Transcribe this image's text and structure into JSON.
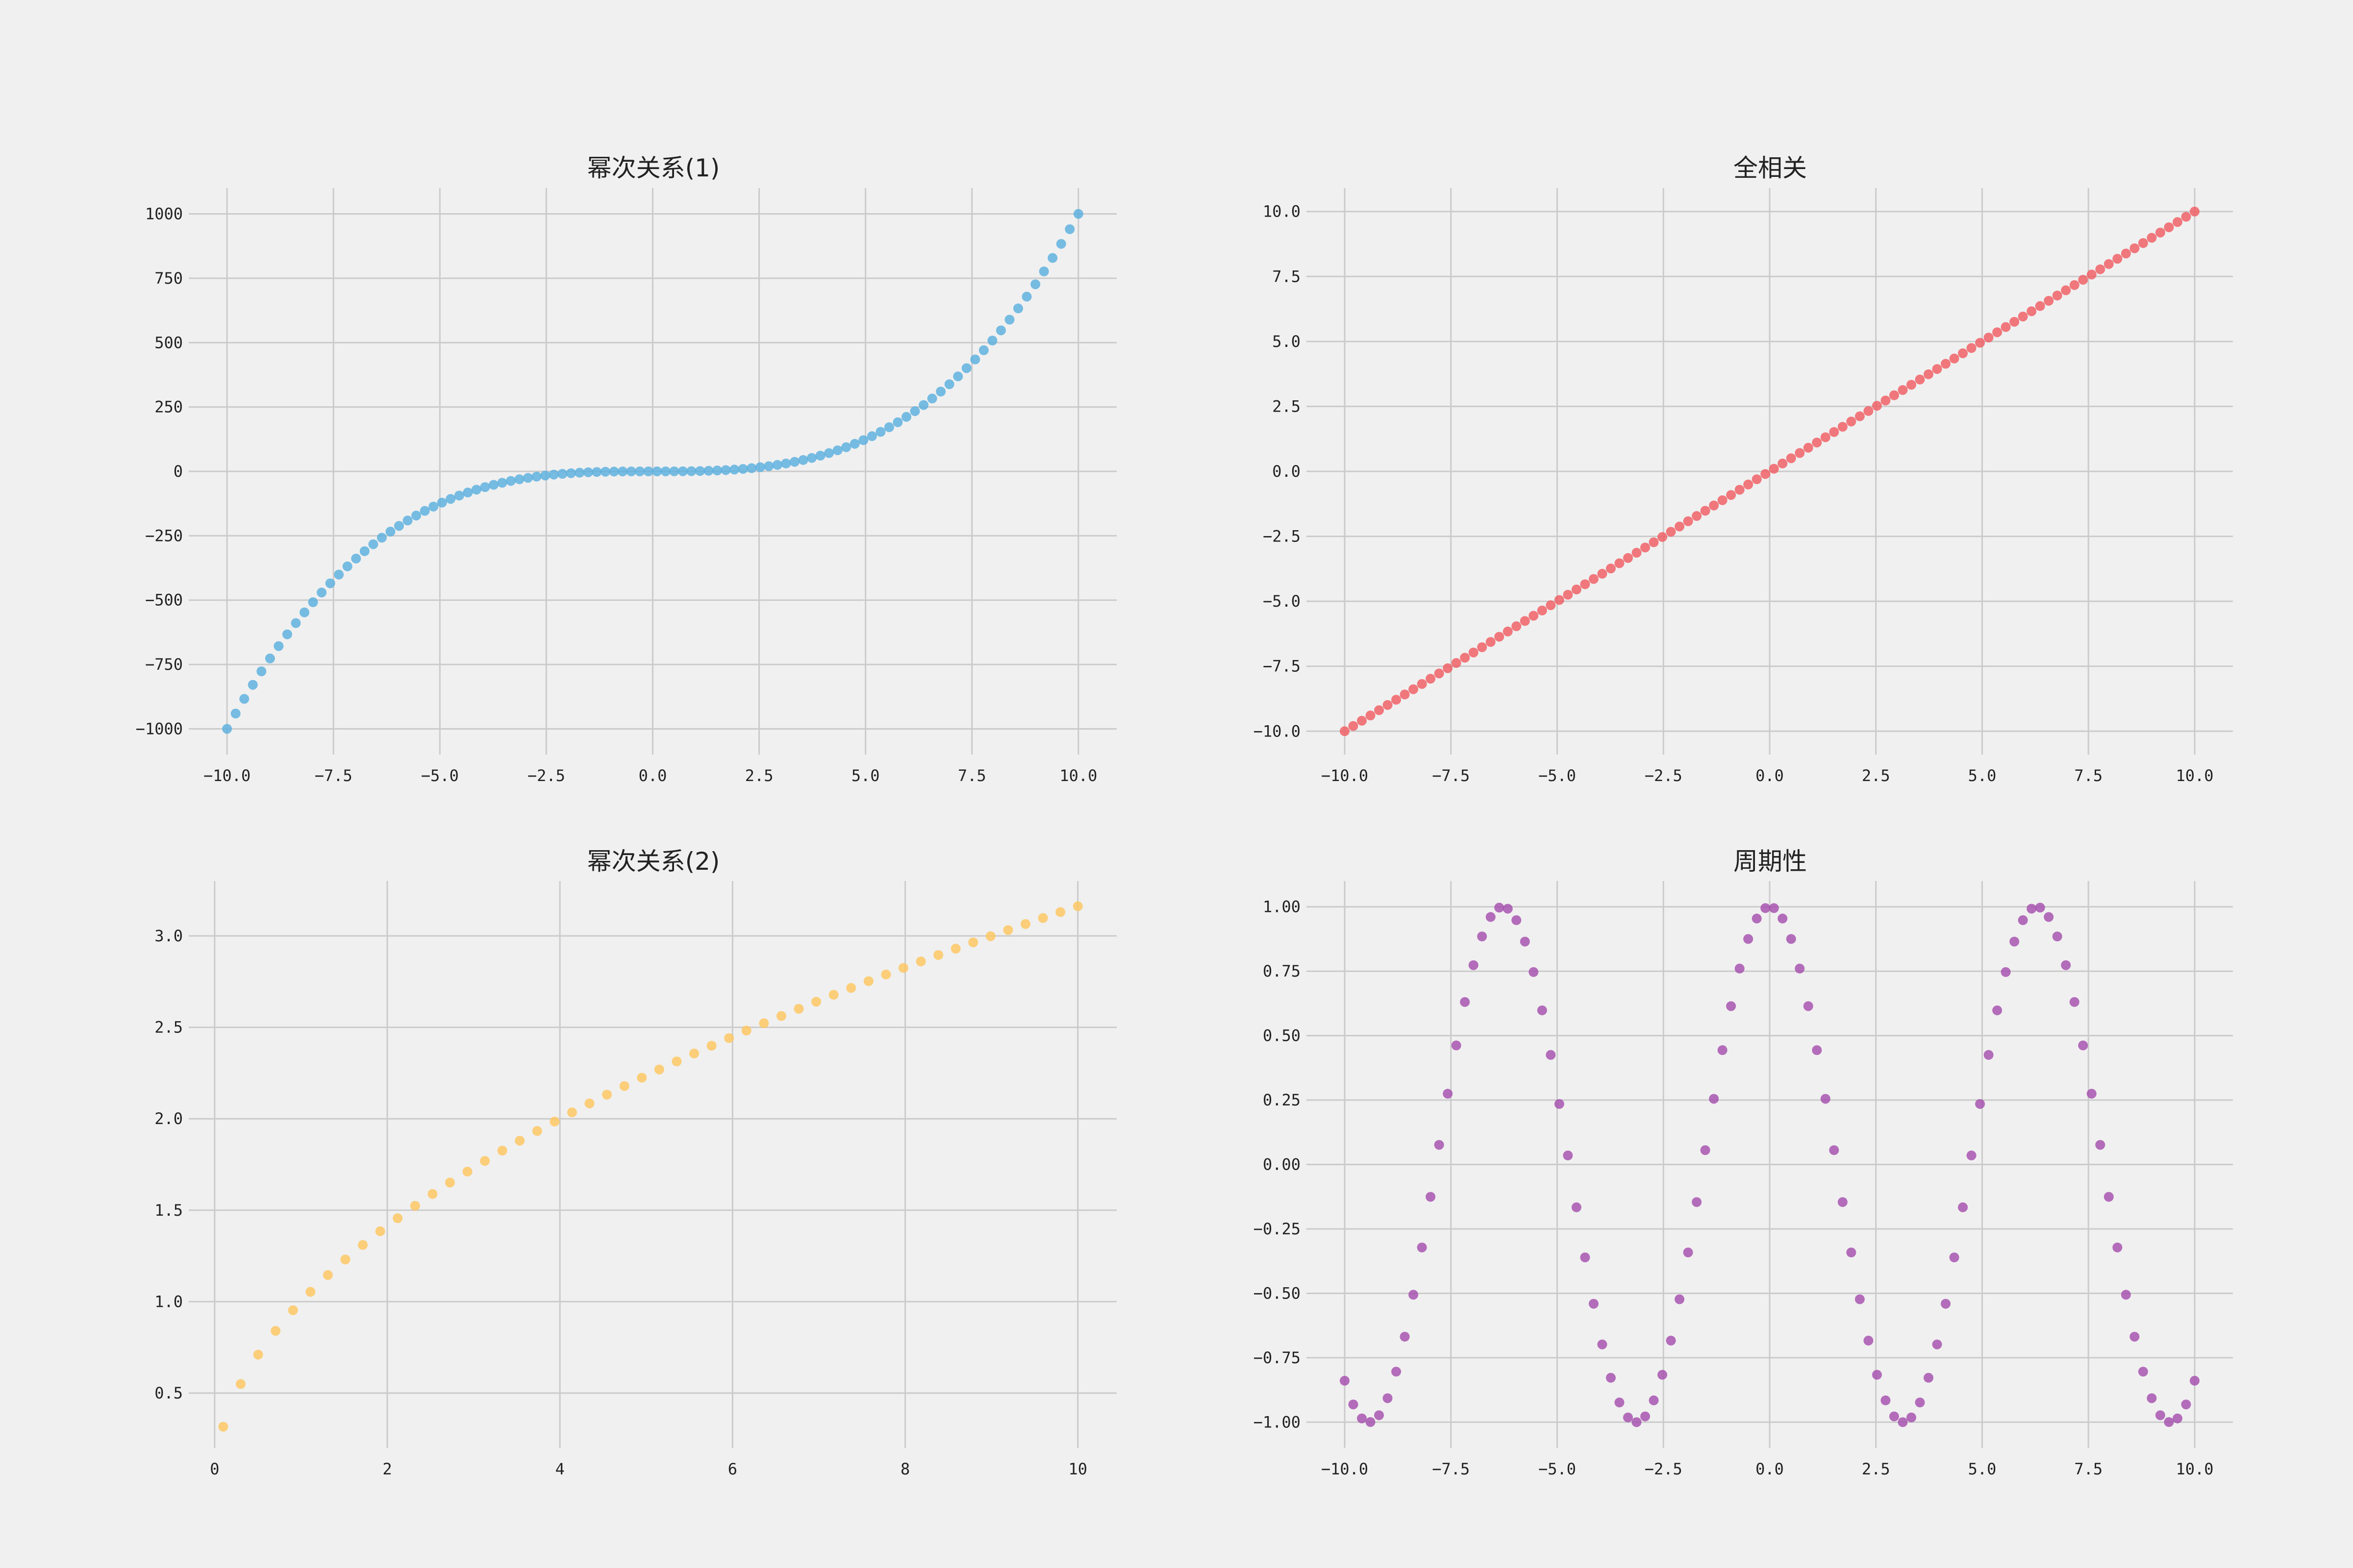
{
  "chart_data": [
    {
      "type": "scatter",
      "title": "幂次关系(1)",
      "xlabel": "",
      "ylabel": "",
      "function": "y = x^3",
      "x_range": [
        -10,
        10
      ],
      "n_points": 100,
      "xlim": [
        -10.9,
        10.9
      ],
      "ylim": [
        -1100,
        1100
      ],
      "xticks": [
        -10,
        -7.5,
        -5,
        -2.5,
        0,
        2.5,
        5,
        7.5,
        10
      ],
      "xtick_labels": [
        "−10.0",
        "−7.5",
        "−5.0",
        "−2.5",
        "0.0",
        "2.5",
        "5.0",
        "7.5",
        "10.0"
      ],
      "yticks": [
        1000,
        750,
        500,
        250,
        0,
        -250,
        -500,
        -750,
        -1000
      ],
      "ytick_labels": [
        "1000",
        "750",
        "500",
        "250",
        "0",
        "−250",
        "−500",
        "−750",
        "−1000"
      ],
      "grid": true,
      "color": "#56aede"
    },
    {
      "type": "scatter",
      "title": "全相关",
      "xlabel": "",
      "ylabel": "",
      "function": "y = x",
      "x_range": [
        -10,
        10
      ],
      "n_points": 100,
      "xlim": [
        -10.9,
        10.9
      ],
      "ylim": [
        -10.9,
        10.9
      ],
      "xticks": [
        -10,
        -7.5,
        -5,
        -2.5,
        0,
        2.5,
        5,
        7.5,
        10
      ],
      "xtick_labels": [
        "−10.0",
        "−7.5",
        "−5.0",
        "−2.5",
        "0.0",
        "2.5",
        "5.0",
        "7.5",
        "10.0"
      ],
      "yticks": [
        10,
        7.5,
        5,
        2.5,
        0,
        -2.5,
        -5,
        -7.5,
        -10
      ],
      "ytick_labels": [
        "10.0",
        "7.5",
        "5.0",
        "2.5",
        "0.0",
        "−2.5",
        "−5.0",
        "−7.5",
        "−10.0"
      ],
      "grid": true,
      "color": "#f05a5f"
    },
    {
      "type": "scatter",
      "title": "幂次关系(2)",
      "xlabel": "",
      "ylabel": "",
      "function": "y = sqrt(x)",
      "x_range": [
        0.1,
        10
      ],
      "n_points": 50,
      "xlim": [
        -0.3,
        10.45
      ],
      "ylim": [
        0.2,
        3.3
      ],
      "xticks": [
        0,
        2,
        4,
        6,
        8,
        10
      ],
      "xtick_labels": [
        "0",
        "2",
        "4",
        "6",
        "8",
        "10"
      ],
      "yticks": [
        3.0,
        2.5,
        2.0,
        1.5,
        1.0,
        0.5
      ],
      "ytick_labels": [
        "3.0",
        "2.5",
        "2.0",
        "1.5",
        "1.0",
        "0.5"
      ],
      "grid": true,
      "color": "#ffc65c"
    },
    {
      "type": "scatter",
      "title": "周期性",
      "xlabel": "",
      "ylabel": "",
      "function": "y = cos(x)",
      "x_range": [
        -10,
        10
      ],
      "n_points": 100,
      "xlim": [
        -10.9,
        10.9
      ],
      "ylim": [
        -1.1,
        1.1
      ],
      "xticks": [
        -10,
        -7.5,
        -5,
        -2.5,
        0,
        2.5,
        5,
        7.5,
        10
      ],
      "xtick_labels": [
        "−10.0",
        "−7.5",
        "−5.0",
        "−2.5",
        "0.0",
        "2.5",
        "5.0",
        "7.5",
        "10.0"
      ],
      "yticks": [
        1.0,
        0.75,
        0.5,
        0.25,
        0,
        -0.25,
        -0.5,
        -0.75,
        -1.0
      ],
      "ytick_labels": [
        "1.00",
        "0.75",
        "0.50",
        "0.25",
        "0.00",
        "−0.25",
        "−0.50",
        "−0.75",
        "−1.00"
      ],
      "grid": true,
      "color": "#a44bac"
    }
  ]
}
